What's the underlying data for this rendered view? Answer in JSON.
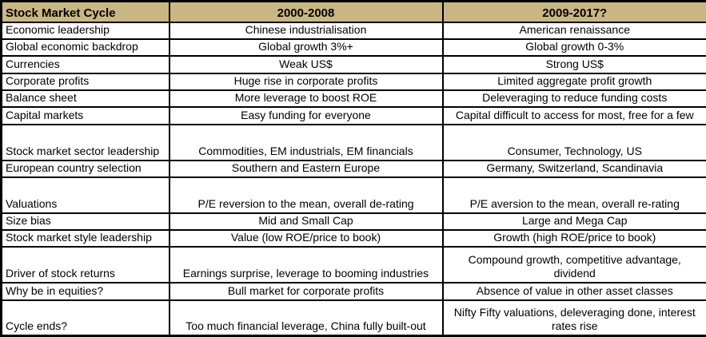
{
  "colors": {
    "header_bg": "#C9B783",
    "border": "#000000",
    "cell_bg": "#FFFFFF",
    "text": "#000000"
  },
  "table": {
    "header": {
      "col0": "Stock Market Cycle",
      "col1": "2000-2008",
      "col2": "2009-2017?"
    },
    "rows": [
      {
        "label": "Economic leadership",
        "col1": "Chinese industrialisation",
        "col2": "American renaissance",
        "tall": false
      },
      {
        "label": "Global economic backdrop",
        "col1": "Global growth 3%+",
        "col2": "Global growth 0-3%",
        "tall": false
      },
      {
        "label": "Currencies",
        "col1": "Weak US$",
        "col2": "Strong US$",
        "tall": false
      },
      {
        "label": "Corporate profits",
        "col1": "Huge rise in corporate profits",
        "col2": "Limited aggregate profit growth",
        "tall": false
      },
      {
        "label": "Balance sheet",
        "col1": "More leverage to boost ROE",
        "col2": "Deleveraging to reduce funding costs",
        "tall": false
      },
      {
        "label": "Capital markets",
        "col1": "Easy funding for everyone",
        "col2": "Capital difficult to access for most, free for a few",
        "tall": false
      },
      {
        "label": "Stock market sector leadership",
        "col1": "Commodities, EM industrials, EM financials",
        "col2": "Consumer, Technology, US",
        "tall": true
      },
      {
        "label": "European country selection",
        "col1": "Southern and Eastern Europe",
        "col2": "Germany, Switzerland, Scandinavia",
        "tall": false
      },
      {
        "label": "Valuations",
        "col1": "P/E reversion to the mean, overall de-rating",
        "col2": "P/E aversion to the mean, overall re-rating",
        "tall": true
      },
      {
        "label": "Size bias",
        "col1": "Mid and Small Cap",
        "col2": "Large and Mega Cap",
        "tall": false
      },
      {
        "label": "Stock market style leadership",
        "col1": "Value (low ROE/price to book)",
        "col2": "Growth (high ROE/price to book)",
        "tall": false
      },
      {
        "label": "Driver of stock returns",
        "col1": "Earnings surprise, leverage to booming industries",
        "col2": "Compound growth, competitive advantage, dividend",
        "tall": true
      },
      {
        "label": "Why be in equities?",
        "col1": "Bull market for corporate profits",
        "col2": "Absence of value in other asset classes",
        "tall": false
      },
      {
        "label": "Cycle ends?",
        "col1": "Too much financial leverage, China fully built-out",
        "col2": "Nifty Fifty valuations, deleveraging done, interest rates rise",
        "tall": true
      }
    ]
  },
  "chart_data": {
    "type": "table",
    "title": "Stock Market Cycle",
    "columns": [
      "Stock Market Cycle",
      "2000-2008",
      "2009-2017?"
    ],
    "rows": [
      [
        "Economic leadership",
        "Chinese industrialisation",
        "American renaissance"
      ],
      [
        "Global economic backdrop",
        "Global growth 3%+",
        "Global growth 0-3%"
      ],
      [
        "Currencies",
        "Weak US$",
        "Strong US$"
      ],
      [
        "Corporate profits",
        "Huge rise in corporate profits",
        "Limited aggregate profit growth"
      ],
      [
        "Balance sheet",
        "More leverage to boost ROE",
        "Deleveraging to reduce funding costs"
      ],
      [
        "Capital markets",
        "Easy funding for everyone",
        "Capital difficult to access for most, free for a few"
      ],
      [
        "Stock market sector leadership",
        "Commodities, EM industrials, EM financials",
        "Consumer, Technology, US"
      ],
      [
        "European country selection",
        "Southern and Eastern Europe",
        "Germany, Switzerland, Scandinavia"
      ],
      [
        "Valuations",
        "P/E reversion to the mean, overall de-rating",
        "P/E aversion to the mean, overall re-rating"
      ],
      [
        "Size bias",
        "Mid and Small Cap",
        "Large and Mega Cap"
      ],
      [
        "Stock market style leadership",
        "Value (low ROE/price to book)",
        "Growth (high ROE/price to book)"
      ],
      [
        "Driver of stock returns",
        "Earnings surprise, leverage to booming industries",
        "Compound growth, competitive advantage, dividend"
      ],
      [
        "Why be in equities?",
        "Bull market for corporate profits",
        "Absence of value in other asset classes"
      ],
      [
        "Cycle ends?",
        "Too much financial leverage, China fully built-out",
        "Nifty Fifty valuations, deleveraging done, interest rates rise"
      ]
    ],
    "layout_hints": {
      "header_background": "#C9B783",
      "header_bold": true,
      "outer_border": "thick black",
      "grid": "all black borders",
      "label_column_align": "left",
      "data_columns_align": "center",
      "vertical_align": "bottom"
    }
  }
}
